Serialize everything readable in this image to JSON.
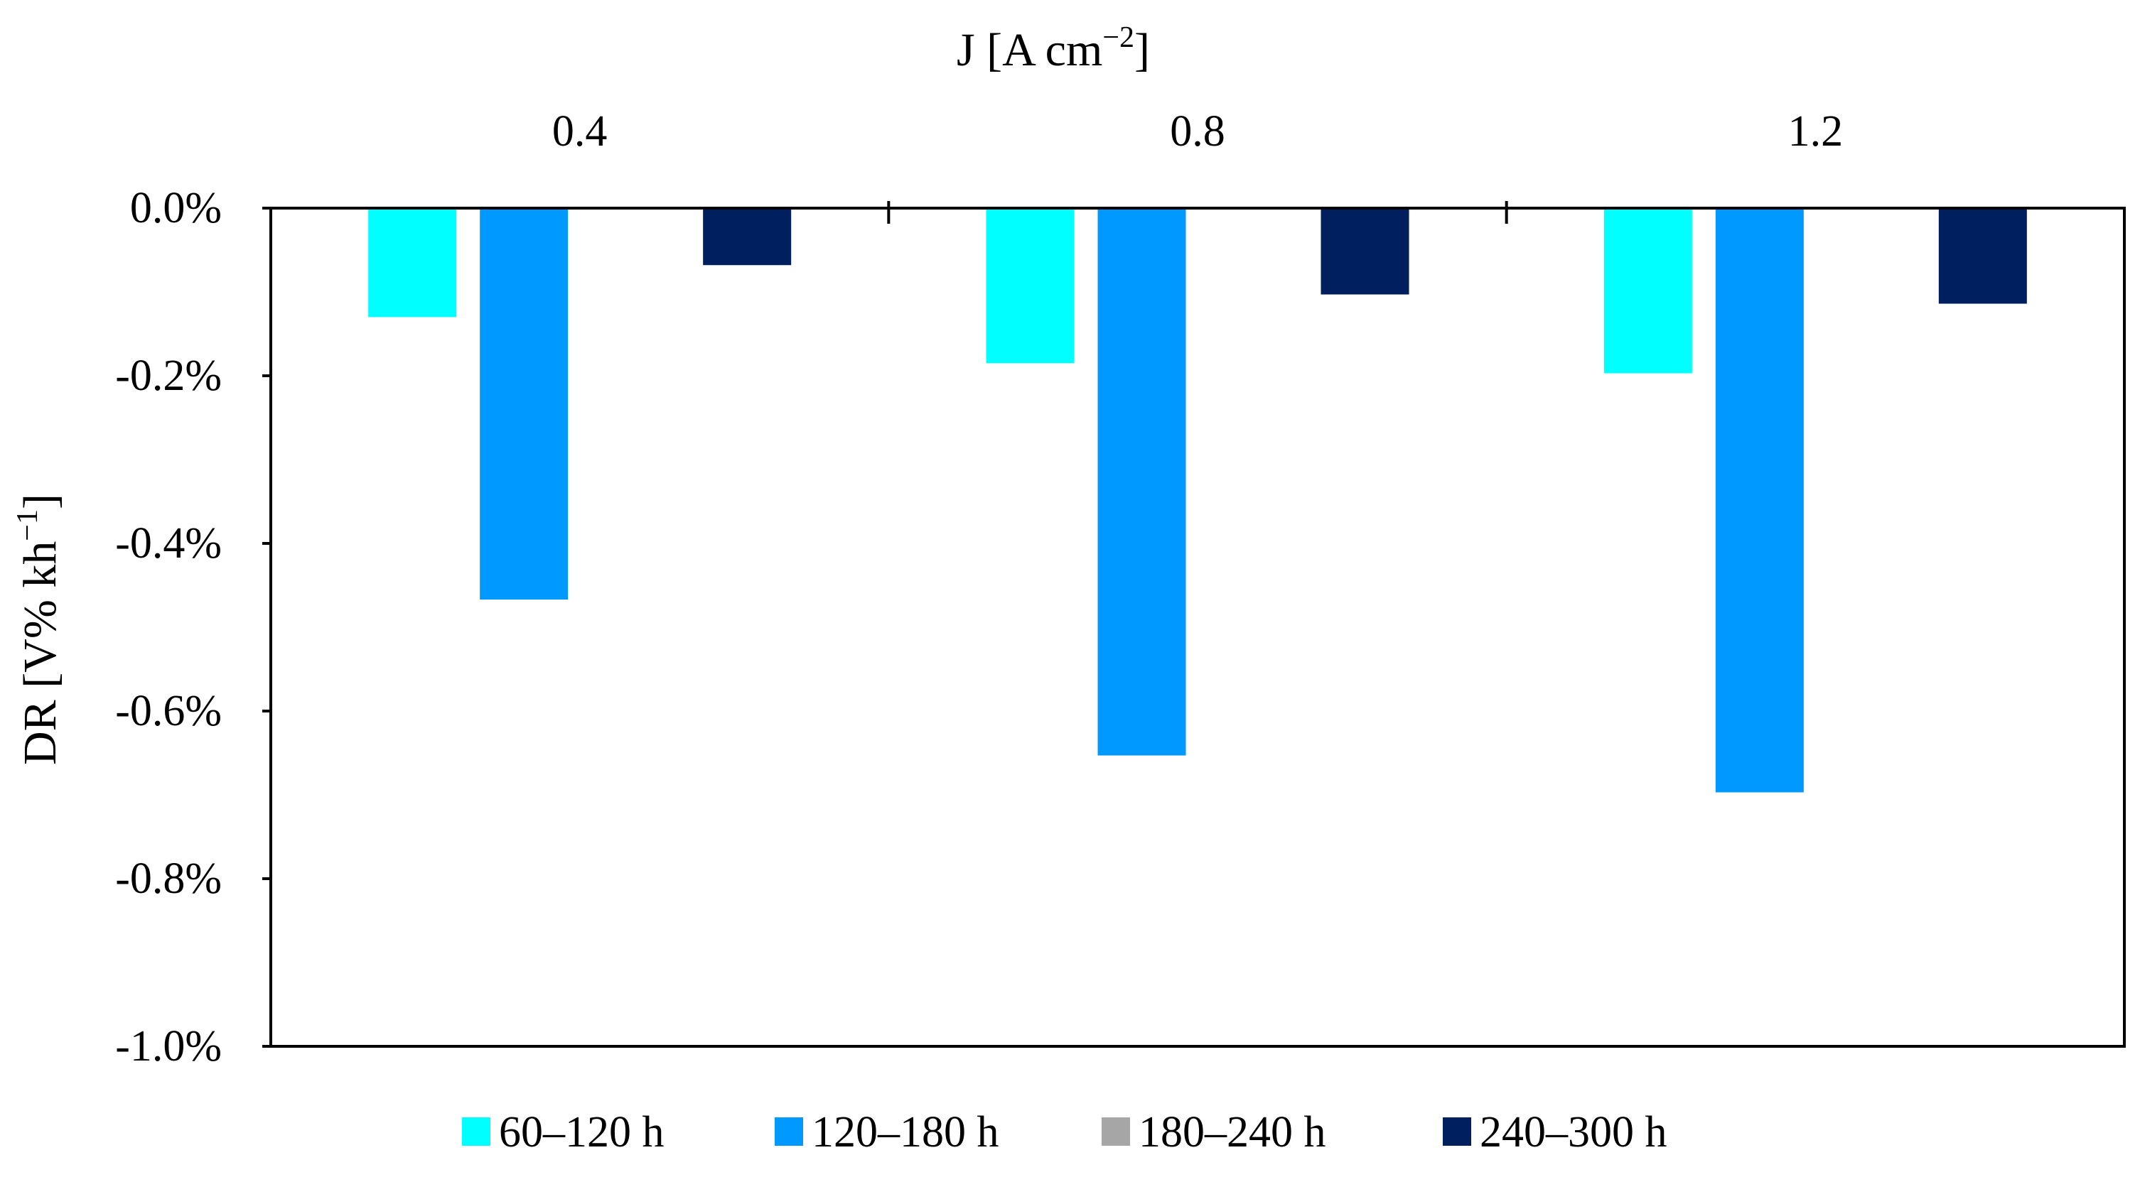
{
  "chart_data": {
    "type": "bar",
    "title": "",
    "xlabel": "J [A cm−2]",
    "xlabel_parts": {
      "main": "J [A cm",
      "sup": "−2",
      "close": "]"
    },
    "ylabel": "DR [V% kh−1]",
    "ylabel_parts": {
      "main": "DR [V% kh",
      "sup": "−1",
      "close": "]"
    },
    "x_axis_position": "top",
    "categories": [
      "0.4",
      "0.8",
      "1.2"
    ],
    "y_ticks": [
      0.0,
      -0.2,
      -0.4,
      -0.6,
      -0.8,
      -1.0
    ],
    "y_tick_labels": [
      "0.0%",
      "-0.2%",
      "-0.4%",
      "-0.6%",
      "-0.8%",
      "-1.0%"
    ],
    "ylim": [
      -1.0,
      0.0
    ],
    "y_unit": "%",
    "grid": false,
    "legend_position": "bottom",
    "series": [
      {
        "name": "60–120 h",
        "color": "#00FFFF",
        "values": [
          -0.13,
          -0.185,
          -0.197
        ]
      },
      {
        "name": "120–180 h",
        "color": "#0099FF",
        "values": [
          -0.467,
          -0.653,
          -0.697
        ]
      },
      {
        "name": "180–240 h",
        "color": "#A6A6A6",
        "values": [
          0,
          0,
          0
        ]
      },
      {
        "name": "240–300 h",
        "color": "#001F5F",
        "values": [
          -0.068,
          -0.103,
          -0.114
        ]
      }
    ]
  }
}
